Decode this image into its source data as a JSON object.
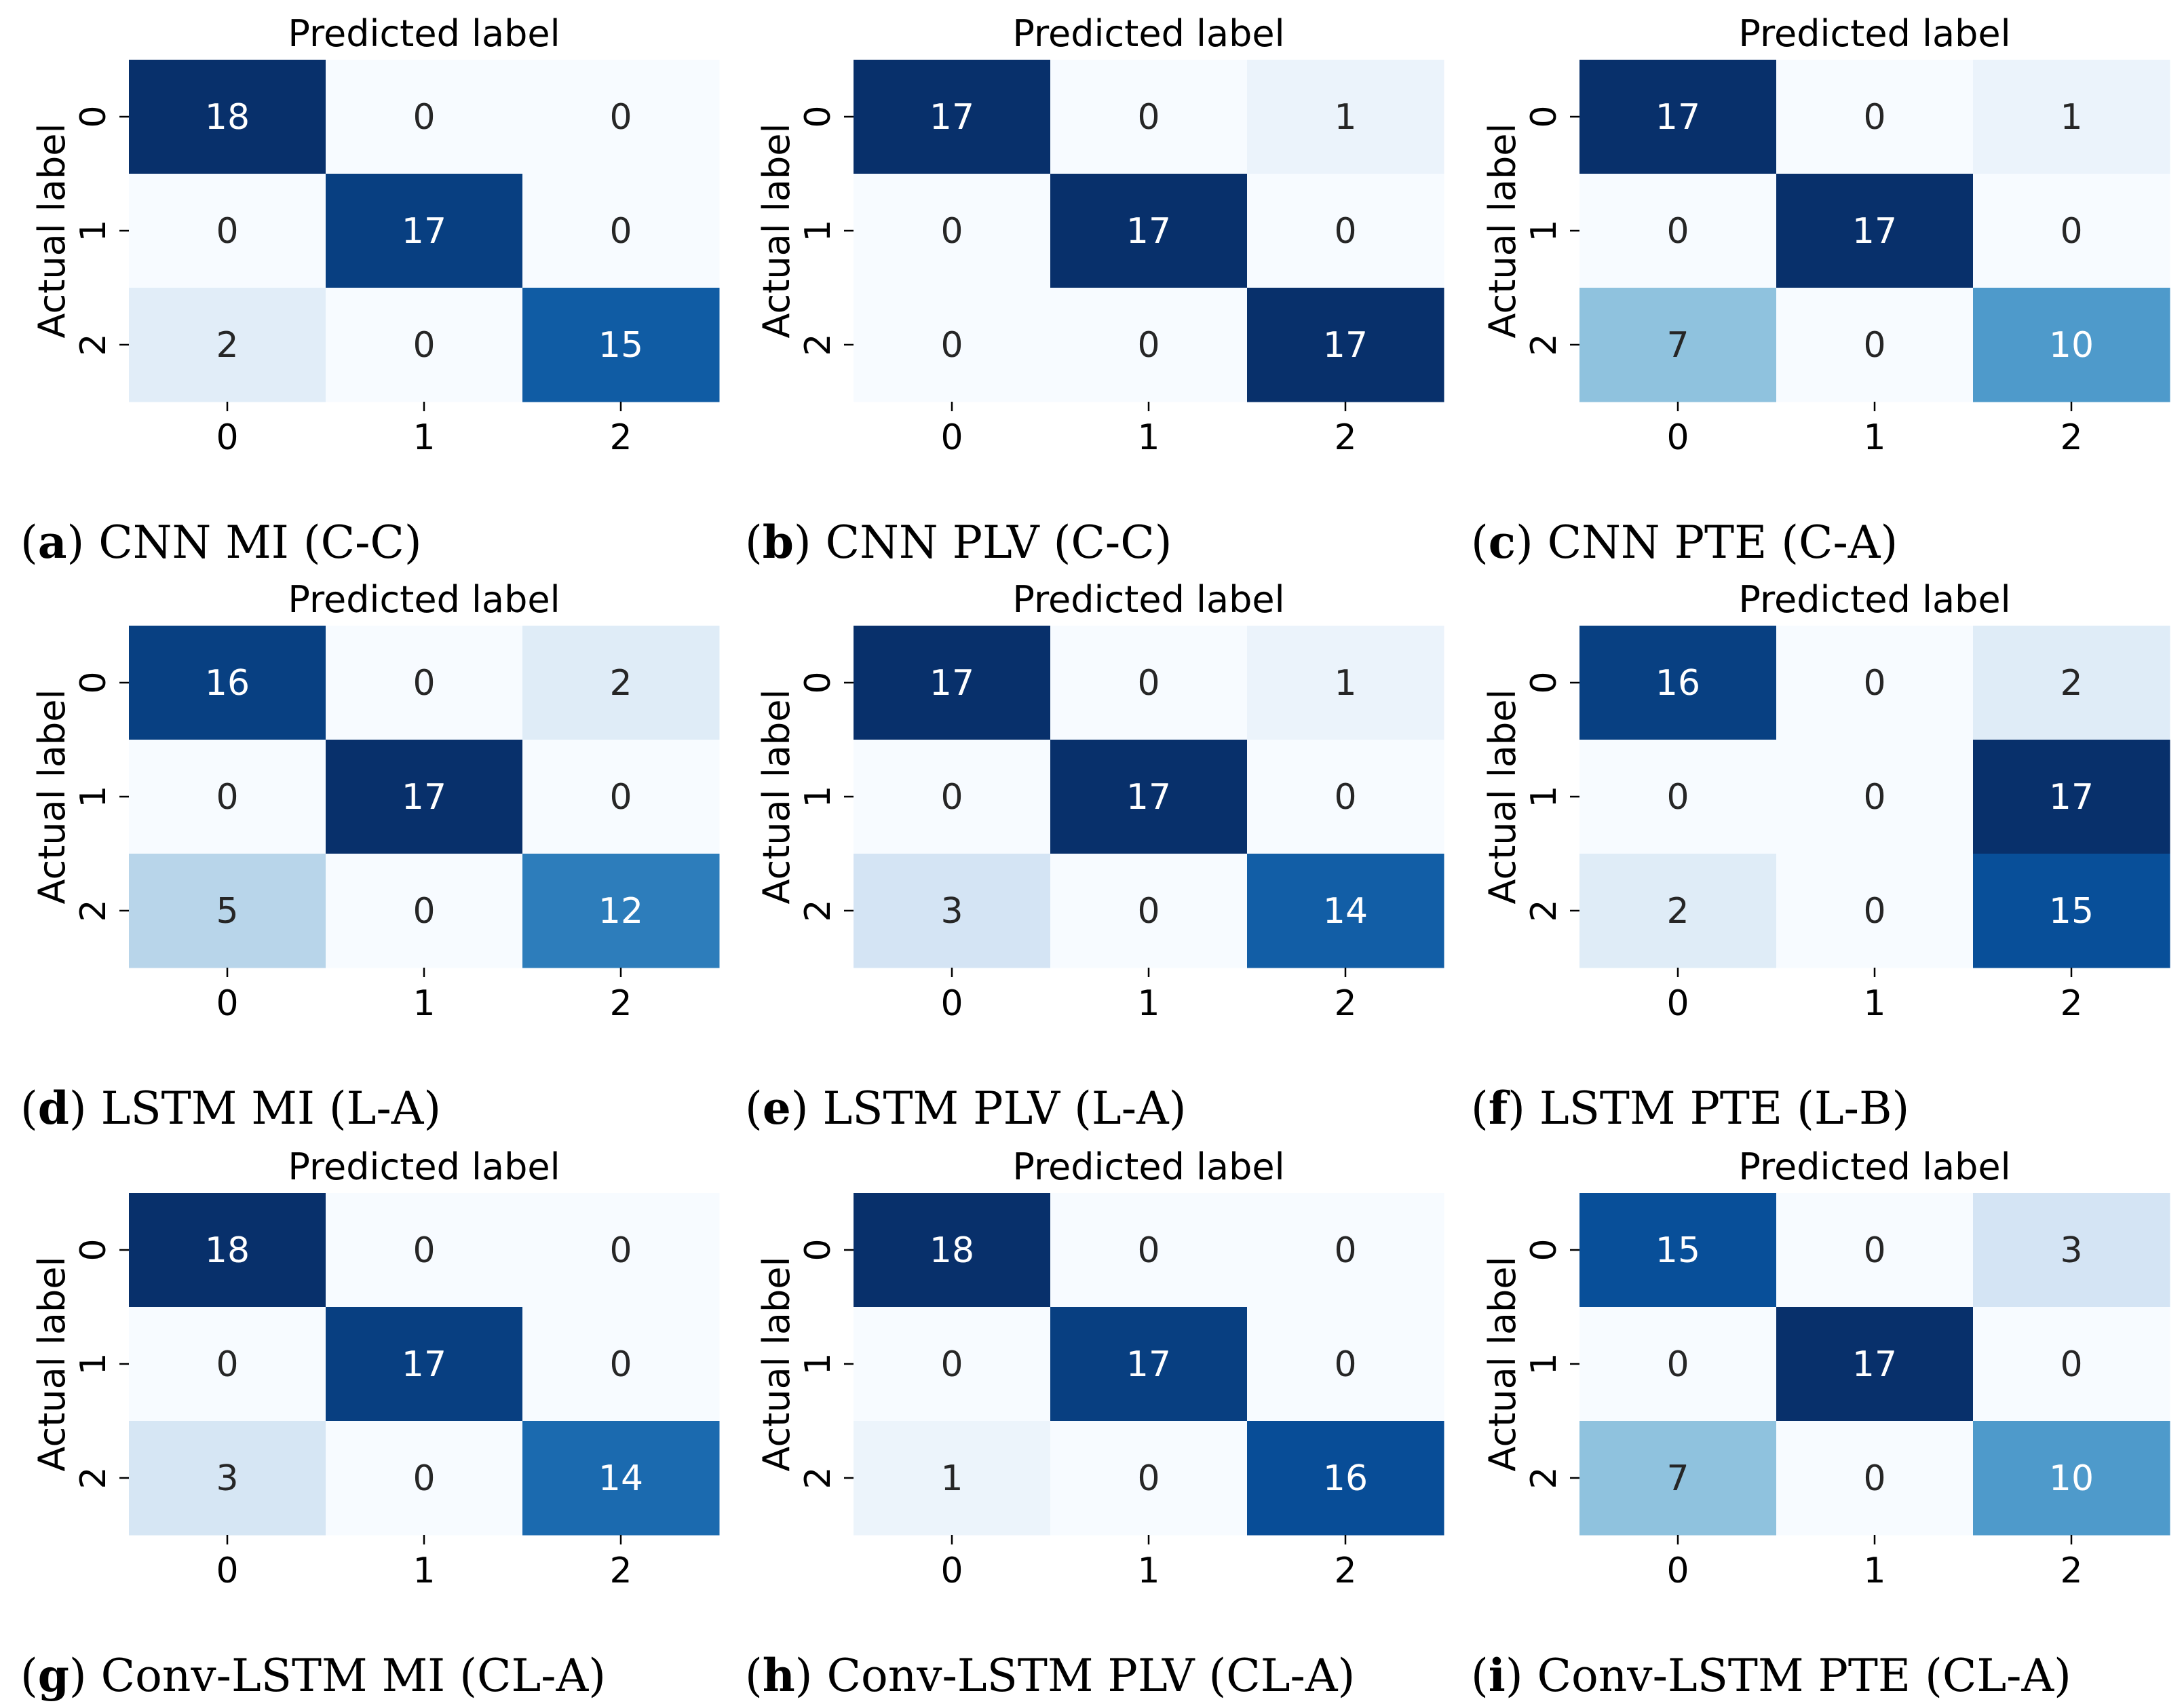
{
  "chart_data": [
    {
      "type": "heatmap",
      "panel_letter": "a",
      "caption": "CNN MI (C-C)",
      "xlabel": "Predicted label",
      "ylabel": "Actual label",
      "x_ticks": [
        "0",
        "1",
        "2"
      ],
      "y_ticks": [
        "0",
        "1",
        "2"
      ],
      "colormap": "Blues",
      "vmax": 18,
      "matrix": [
        [
          18,
          0,
          0
        ],
        [
          0,
          17,
          0
        ],
        [
          2,
          0,
          15
        ]
      ]
    },
    {
      "type": "heatmap",
      "panel_letter": "b",
      "caption": "CNN PLV (C-C)",
      "xlabel": "Predicted label",
      "ylabel": "Actual label",
      "x_ticks": [
        "0",
        "1",
        "2"
      ],
      "y_ticks": [
        "0",
        "1",
        "2"
      ],
      "colormap": "Blues",
      "vmax": 17,
      "matrix": [
        [
          17,
          0,
          1
        ],
        [
          0,
          17,
          0
        ],
        [
          0,
          0,
          17
        ]
      ]
    },
    {
      "type": "heatmap",
      "panel_letter": "c",
      "caption": "CNN PTE (C-A)",
      "xlabel": "Predicted label",
      "ylabel": "Actual label",
      "x_ticks": [
        "0",
        "1",
        "2"
      ],
      "y_ticks": [
        "0",
        "1",
        "2"
      ],
      "colormap": "Blues",
      "vmax": 17,
      "matrix": [
        [
          17,
          0,
          1
        ],
        [
          0,
          17,
          0
        ],
        [
          7,
          0,
          10
        ]
      ]
    },
    {
      "type": "heatmap",
      "panel_letter": "d",
      "caption": "LSTM MI (L-A)",
      "xlabel": "Predicted label",
      "ylabel": "Actual label",
      "x_ticks": [
        "0",
        "1",
        "2"
      ],
      "y_ticks": [
        "0",
        "1",
        "2"
      ],
      "colormap": "Blues",
      "vmax": 17,
      "matrix": [
        [
          16,
          0,
          2
        ],
        [
          0,
          17,
          0
        ],
        [
          5,
          0,
          12
        ]
      ]
    },
    {
      "type": "heatmap",
      "panel_letter": "e",
      "caption": "LSTM PLV (L-A)",
      "xlabel": "Predicted label",
      "ylabel": "Actual label",
      "x_ticks": [
        "0",
        "1",
        "2"
      ],
      "y_ticks": [
        "0",
        "1",
        "2"
      ],
      "colormap": "Blues",
      "vmax": 17,
      "matrix": [
        [
          17,
          0,
          1
        ],
        [
          0,
          17,
          0
        ],
        [
          3,
          0,
          14
        ]
      ]
    },
    {
      "type": "heatmap",
      "panel_letter": "f",
      "caption": "LSTM PTE (L-B)",
      "xlabel": "Predicted label",
      "ylabel": "Actual label",
      "x_ticks": [
        "0",
        "1",
        "2"
      ],
      "y_ticks": [
        "0",
        "1",
        "2"
      ],
      "colormap": "Blues",
      "vmax": 17,
      "matrix": [
        [
          16,
          0,
          2
        ],
        [
          0,
          0,
          17
        ],
        [
          2,
          0,
          15
        ]
      ]
    },
    {
      "type": "heatmap",
      "panel_letter": "g",
      "caption": "Conv-LSTM MI (CL-A)",
      "xlabel": "Predicted label",
      "ylabel": "Actual label",
      "x_ticks": [
        "0",
        "1",
        "2"
      ],
      "y_ticks": [
        "0",
        "1",
        "2"
      ],
      "colormap": "Blues",
      "vmax": 18,
      "matrix": [
        [
          18,
          0,
          0
        ],
        [
          0,
          17,
          0
        ],
        [
          3,
          0,
          14
        ]
      ]
    },
    {
      "type": "heatmap",
      "panel_letter": "h",
      "caption": "Conv-LSTM PLV (CL-A)",
      "xlabel": "Predicted label",
      "ylabel": "Actual label",
      "x_ticks": [
        "0",
        "1",
        "2"
      ],
      "y_ticks": [
        "0",
        "1",
        "2"
      ],
      "colormap": "Blues",
      "vmax": 18,
      "matrix": [
        [
          18,
          0,
          0
        ],
        [
          0,
          17,
          0
        ],
        [
          1,
          0,
          16
        ]
      ]
    },
    {
      "type": "heatmap",
      "panel_letter": "i",
      "caption": "Conv-LSTM PTE (CL-A)",
      "xlabel": "Predicted label",
      "ylabel": "Actual label",
      "x_ticks": [
        "0",
        "1",
        "2"
      ],
      "y_ticks": [
        "0",
        "1",
        "2"
      ],
      "colormap": "Blues",
      "vmax": 17,
      "matrix": [
        [
          15,
          0,
          3
        ],
        [
          0,
          17,
          0
        ],
        [
          7,
          0,
          10
        ]
      ]
    }
  ]
}
